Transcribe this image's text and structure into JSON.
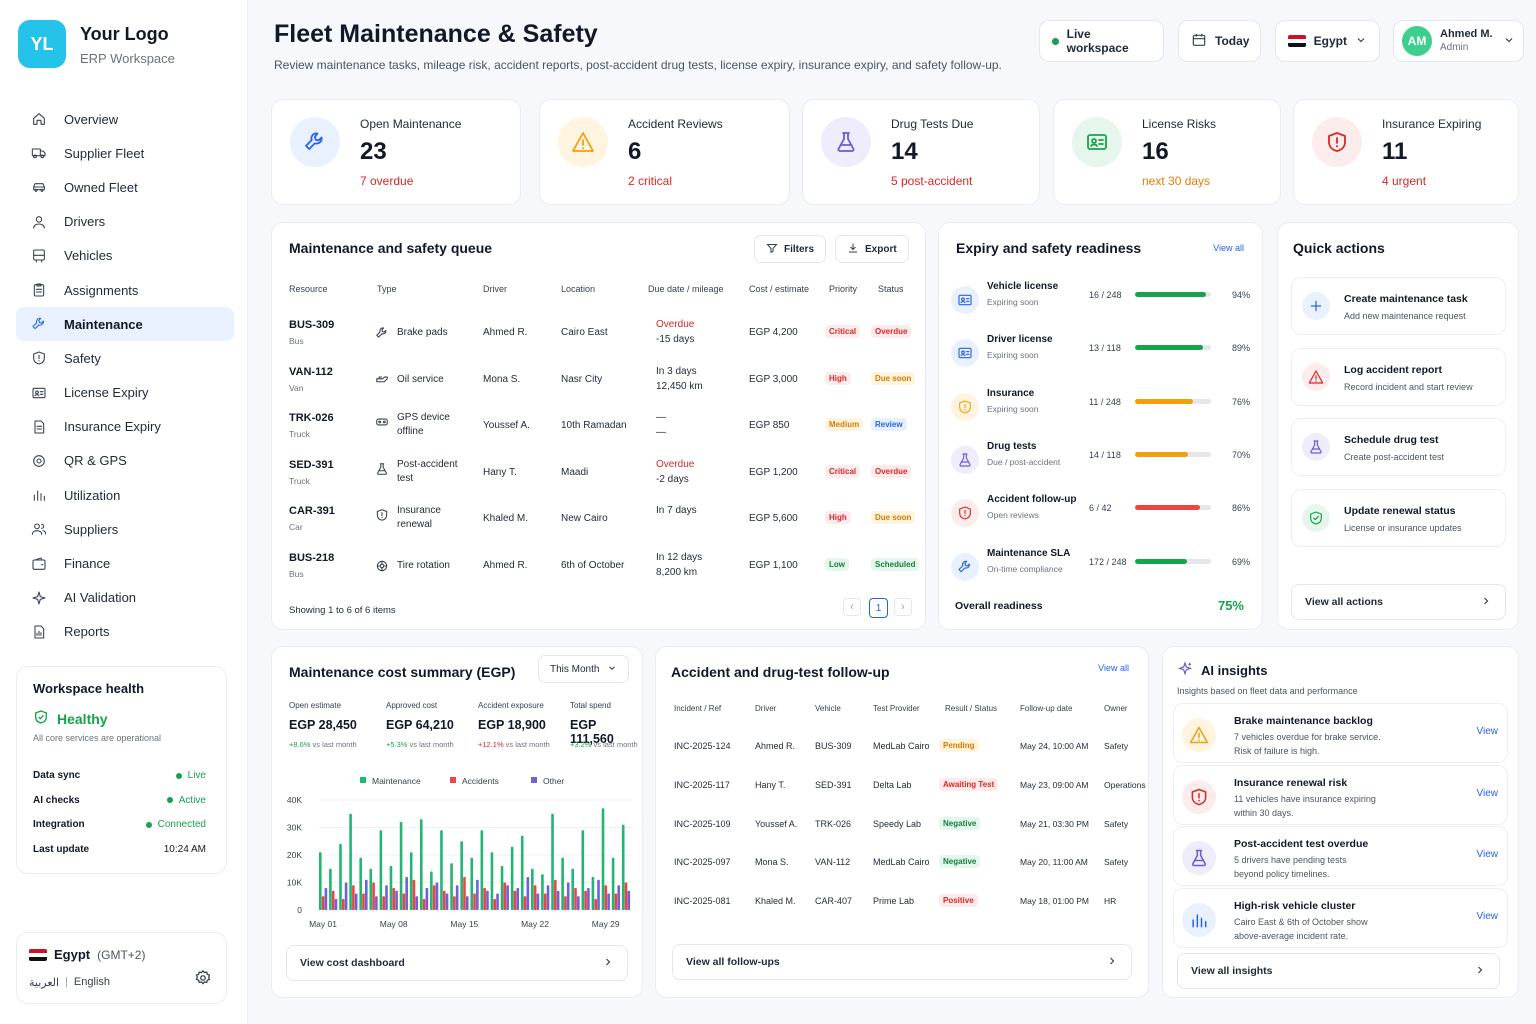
{
  "brand": {
    "logo_text": "YL",
    "title": "Your Logo",
    "subtitle": "ERP Workspace"
  },
  "nav": [
    {
      "label": "Overview",
      "icon": "home-icon",
      "active": false
    },
    {
      "label": "Supplier Fleet",
      "icon": "truck-icon",
      "active": false
    },
    {
      "label": "Owned Fleet",
      "icon": "car-icon",
      "active": false
    },
    {
      "label": "Drivers",
      "icon": "user-icon",
      "active": false
    },
    {
      "label": "Vehicles",
      "icon": "bus-icon",
      "active": false
    },
    {
      "label": "Assignments",
      "icon": "clipboard-icon",
      "active": false
    },
    {
      "label": "Maintenance",
      "icon": "wrench-icon",
      "active": true
    },
    {
      "label": "Safety",
      "icon": "shield-icon",
      "active": false
    },
    {
      "label": "License Expiry",
      "icon": "id-card-icon",
      "active": false
    },
    {
      "label": "Insurance Expiry",
      "icon": "document-icon",
      "active": false
    },
    {
      "label": "QR & GPS",
      "icon": "target-icon",
      "active": false
    },
    {
      "label": "Utilization",
      "icon": "bar-chart-icon",
      "active": false
    },
    {
      "label": "Suppliers",
      "icon": "users-icon",
      "active": false
    },
    {
      "label": "Finance",
      "icon": "wallet-icon",
      "active": false
    },
    {
      "label": "AI Validation",
      "icon": "sparkle-icon",
      "active": false
    },
    {
      "label": "Reports",
      "icon": "report-icon",
      "active": false
    }
  ],
  "health": {
    "title": "Workspace health",
    "status": "Healthy",
    "note": "All core services are operational",
    "rows": [
      {
        "label": "Data sync",
        "value": "Live",
        "dot": true
      },
      {
        "label": "AI checks",
        "value": "Active",
        "dot": true
      },
      {
        "label": "Integration",
        "value": "Connected",
        "dot": true
      },
      {
        "label": "Last update",
        "value": "10:24 AM",
        "dot": false
      }
    ]
  },
  "locale": {
    "country": "Egypt",
    "tz": "(GMT+2)",
    "lang_ar": "العربية",
    "sep": "|",
    "lang_en": "English"
  },
  "header": {
    "title": "Fleet Maintenance & Safety",
    "subtitle": "Review maintenance tasks, mileage risk, accident reports, post-accident drug tests, license expiry, insurance expiry, and safety follow-up.",
    "workspace": "Live workspace",
    "date": "Today",
    "country": "Egypt",
    "user_initials": "AM",
    "user_name": "Ahmed M.",
    "user_role": "Admin"
  },
  "kpis": [
    {
      "label": "Open Maintenance",
      "value": "23",
      "sub": "7 overdue",
      "icon": "wrench-icon",
      "color": "#2563eb",
      "bg": "#eaf1fe",
      "subcolor": "#dc2626"
    },
    {
      "label": "Accident Reviews",
      "value": "6",
      "sub": "2 critical",
      "icon": "warning-icon",
      "color": "#f59e0b",
      "bg": "#fff4e0",
      "subcolor": "#dc2626"
    },
    {
      "label": "Drug Tests Due",
      "value": "14",
      "sub": "5 post-accident",
      "icon": "flask-icon",
      "color": "#6d5bd0",
      "bg": "#efecfb",
      "subcolor": "#dc2626"
    },
    {
      "label": "License Risks",
      "value": "16",
      "sub": "next 30 days",
      "icon": "id-card-icon",
      "color": "#16a34a",
      "bg": "#e6f6ec",
      "subcolor": "#ea7b06"
    },
    {
      "label": "Insurance Expiring",
      "value": "11",
      "sub": "4 urgent",
      "icon": "shield-icon",
      "color": "#dc2626",
      "bg": "#fdecec",
      "subcolor": "#dc2626"
    }
  ],
  "queue": {
    "title": "Maintenance and safety queue",
    "filters": "Filters",
    "export": "Export",
    "columns": [
      "Resource",
      "Type",
      "Driver",
      "Location",
      "Due date / mileage",
      "Cost / estimate",
      "Priority",
      "Status"
    ],
    "rows": [
      {
        "resource": "BUS-309",
        "rtype": "Bus",
        "type1": "Brake pads",
        "type2": "",
        "icon": "wrench-icon",
        "driver": "Ahmed R.",
        "location": "Cairo East",
        "due1": "Overdue",
        "due2": "-15 days",
        "due_red": true,
        "cost": "EGP 4,200",
        "priority": "Critical",
        "pclass": "red",
        "status": "Overdue",
        "sclass": "pink"
      },
      {
        "resource": "VAN-112",
        "rtype": "Van",
        "type1": "Oil service",
        "type2": "",
        "icon": "oil-icon",
        "driver": "Mona S.",
        "location": "Nasr City",
        "due1": "In 3 days",
        "due2": "12,450 km",
        "due_red": false,
        "cost": "EGP 3,000",
        "priority": "High",
        "pclass": "red",
        "status": "Due soon",
        "sclass": "yellow"
      },
      {
        "resource": "TRK-026",
        "rtype": "Truck",
        "type1": "GPS device",
        "type2": "offline",
        "icon": "gps-icon",
        "driver": "Youssef A.",
        "location": "10th Ramadan",
        "due1": "—",
        "due2": "—",
        "due_red": false,
        "cost": "EGP 850",
        "priority": "Medium",
        "pclass": "yellow",
        "status": "Review",
        "sclass": "blue"
      },
      {
        "resource": "SED-391",
        "rtype": "Truck",
        "type1": "Post-accident",
        "type2": "test",
        "icon": "flask-icon",
        "driver": "Hany T.",
        "location": "Maadi",
        "due1": "Overdue",
        "due2": "-2 days",
        "due_red": true,
        "cost": "EGP 1,200",
        "priority": "Critical",
        "pclass": "red",
        "status": "Overdue",
        "sclass": "pink"
      },
      {
        "resource": "CAR-391",
        "rtype": "Car",
        "type1": "Insurance",
        "type2": "renewal",
        "icon": "shield-icon",
        "driver": "Khaled M.",
        "location": "New Cairo",
        "due1": "In 7 days",
        "due2": "",
        "due_red": false,
        "cost": "EGP 5,600",
        "priority": "High",
        "pclass": "red",
        "status": "Due soon",
        "sclass": "yellow"
      },
      {
        "resource": "BUS-218",
        "rtype": "Bus",
        "type1": "Tire rotation",
        "type2": "",
        "icon": "tire-icon",
        "driver": "Ahmed R.",
        "location": "6th of October",
        "due1": "In 12 days",
        "due2": "8,200 km",
        "due_red": false,
        "cost": "EGP 1,100",
        "priority": "Low",
        "pclass": "green",
        "status": "Scheduled",
        "sclass": "green"
      }
    ],
    "showing": "Showing 1 to 6 of 6 items",
    "page": "1",
    "prev": "‹",
    "next": "›"
  },
  "readiness": {
    "title": "Expiry and safety readiness",
    "view_all": "View all",
    "rows": [
      {
        "name": "Vehicle license",
        "sub": "Expiring soon",
        "count": "16 / 248",
        "pct": 94,
        "pct_label": "94%",
        "color": "#16a34a",
        "icon": "id-card-icon",
        "ic_color": "#2563eb",
        "ic_bg": "#eaf1fe"
      },
      {
        "name": "Driver license",
        "sub": "Expiring soon",
        "count": "13 / 118",
        "pct": 89,
        "pct_label": "89%",
        "color": "#16a34a",
        "icon": "id-card-icon",
        "ic_color": "#2563eb",
        "ic_bg": "#eaf1fe"
      },
      {
        "name": "Insurance",
        "sub": "Expiring soon",
        "count": "11 / 248",
        "pct": 76,
        "pct_label": "76%",
        "color": "#f59e0b",
        "icon": "shield-icon",
        "ic_color": "#f59e0b",
        "ic_bg": "#fff4e0"
      },
      {
        "name": "Drug tests",
        "sub": "Due / post-accident",
        "count": "14 / 118",
        "pct": 70,
        "pct_label": "70%",
        "color": "#f59e0b",
        "icon": "flask-icon",
        "ic_color": "#6d5bd0",
        "ic_bg": "#efecfb"
      },
      {
        "name": "Accident follow-up",
        "sub": "Open reviews",
        "count": "6 / 42",
        "pct": 86,
        "pct_label": "86%",
        "color": "#ef4444",
        "icon": "shield-icon",
        "ic_color": "#dc2626",
        "ic_bg": "#fdecec"
      },
      {
        "name": "Maintenance SLA",
        "sub": "On-time compliance",
        "count": "172 / 248",
        "pct": 69,
        "pct_label": "69%",
        "color": "#16a34a",
        "icon": "wrench-icon",
        "ic_color": "#2563eb",
        "ic_bg": "#eaf1fe"
      }
    ],
    "overall_label": "Overall readiness",
    "overall": "75%"
  },
  "quick": {
    "title": "Quick actions",
    "items": [
      {
        "title": "Create maintenance task",
        "sub": "Add new maintenance request",
        "icon": "plus-icon",
        "color": "#2563eb",
        "bg": "#eaf1fe"
      },
      {
        "title": "Log accident report",
        "sub": "Record incident and start review",
        "icon": "warning-icon",
        "color": "#dc2626",
        "bg": "#fdecec"
      },
      {
        "title": "Schedule drug test",
        "sub": "Create post-accident test",
        "icon": "flask-icon",
        "color": "#6d5bd0",
        "bg": "#efecfb"
      },
      {
        "title": "Update renewal status",
        "sub": "License or insurance updates",
        "icon": "shield-check-icon",
        "color": "#16a34a",
        "bg": "#e6f6ec"
      }
    ],
    "view_all": "View all actions"
  },
  "cost": {
    "title": "Maintenance cost summary (EGP)",
    "period": "This Month",
    "stats": [
      {
        "label": "Open estimate",
        "value": "EGP 28,450",
        "delta": "+8.6%",
        "delta_text": "vs last month"
      },
      {
        "label": "Approved cost",
        "value": "EGP 64,210",
        "delta": "+5.3%",
        "delta_text": "vs last month"
      },
      {
        "label": "Accident exposure",
        "value": "EGP 18,900",
        "delta": "+12.1%",
        "delta_text": "vs last month"
      },
      {
        "label": "Total spend",
        "value": "EGP 111,560",
        "delta": "+3.2%",
        "delta_text": "vs last month"
      }
    ],
    "button": "View cost dashboard"
  },
  "chart_data": {
    "type": "bar",
    "ylim": [
      0,
      40000
    ],
    "yticks": [
      {
        "v": 40000,
        "label": "40K"
      },
      {
        "v": 30000,
        "label": "30K"
      },
      {
        "v": 20000,
        "label": "20K"
      },
      {
        "v": 10000,
        "label": "10K"
      },
      {
        "v": 0,
        "label": "0"
      }
    ],
    "xticks": [
      {
        "i": 0,
        "label": "May 01"
      },
      {
        "i": 7,
        "label": "May 08"
      },
      {
        "i": 14,
        "label": "May 15"
      },
      {
        "i": 21,
        "label": "May 22"
      },
      {
        "i": 28,
        "label": "May 29"
      }
    ],
    "legend_position": "top",
    "series": [
      {
        "name": "Maintenance",
        "color": "#22b573",
        "values": [
          21000,
          15000,
          24000,
          35000,
          19000,
          15000,
          29000,
          16000,
          32000,
          21000,
          33000,
          14000,
          29000,
          17000,
          25000,
          19000,
          29000,
          21000,
          16000,
          23000,
          27000,
          15000,
          13000,
          35000,
          19000,
          15000,
          29000,
          12000,
          37000,
          19000,
          31000
        ]
      },
      {
        "name": "Accidents",
        "color": "#ef4444",
        "values": [
          5000,
          7000,
          4000,
          9000,
          6000,
          10000,
          5000,
          8000,
          6000,
          11000,
          4000,
          9000,
          7000,
          5000,
          12000,
          6000,
          8000,
          4000,
          10000,
          7000,
          5000,
          9000,
          6000,
          11000,
          5000,
          8000,
          7000,
          4000,
          9000,
          6000,
          10000
        ]
      },
      {
        "name": "Other",
        "color": "#6b63d8",
        "values": [
          8000,
          4000,
          10000,
          6000,
          11000,
          5000,
          9000,
          7000,
          12000,
          5000,
          8000,
          10000,
          6000,
          9000,
          5000,
          11000,
          7000,
          6000,
          9000,
          8000,
          12000,
          6000,
          9000,
          7000,
          10000,
          5000,
          8000,
          11000,
          6000,
          9000,
          7000
        ]
      }
    ]
  },
  "followup": {
    "title": "Accident and drug-test follow-up",
    "view_all": "View all",
    "columns": [
      "Incident / Ref",
      "Driver",
      "Vehicle",
      "Test Provider",
      "Result / Status",
      "Follow-up date",
      "Owner"
    ],
    "rows": [
      {
        "ref": "INC-2025-124",
        "driver": "Ahmed R.",
        "vehicle": "BUS-309",
        "provider": "MedLab Cairo",
        "status": "Pending",
        "sclass": "yellow",
        "date": "May 24, 10:00 AM",
        "owner": "Safety"
      },
      {
        "ref": "INC-2025-117",
        "driver": "Hany T.",
        "vehicle": "SED-391",
        "provider": "Delta Lab",
        "status": "Awaiting Test",
        "sclass": "pink",
        "date": "May 23, 09:00 AM",
        "owner": "Operations"
      },
      {
        "ref": "INC-2025-109",
        "driver": "Youssef A.",
        "vehicle": "TRK-026",
        "provider": "Speedy Lab",
        "status": "Negative",
        "sclass": "green",
        "date": "May 21, 03:30 PM",
        "owner": "Safety"
      },
      {
        "ref": "INC-2025-097",
        "driver": "Mona S.",
        "vehicle": "VAN-112",
        "provider": "MedLab Cairo",
        "status": "Negative",
        "sclass": "green",
        "date": "May 20, 11:00 AM",
        "owner": "Safety"
      },
      {
        "ref": "INC-2025-081",
        "driver": "Khaled M.",
        "vehicle": "CAR-407",
        "provider": "Prime Lab",
        "status": "Positive",
        "sclass": "pink",
        "date": "May 18, 01:00 PM",
        "owner": "HR"
      }
    ],
    "button": "View all follow-ups"
  },
  "ai": {
    "title": "AI insights",
    "subtitle": "Insights based on fleet data and performance",
    "items": [
      {
        "title": "Brake maintenance backlog",
        "d1": "7 vehicles overdue for brake service.",
        "d2": "Risk of failure is high.",
        "view": "View",
        "icon": "warning-icon",
        "color": "#f59e0b",
        "bg": "#fff4e0"
      },
      {
        "title": "Insurance renewal risk",
        "d1": "11 vehicles have insurance expiring",
        "d2": "within 30 days.",
        "view": "View",
        "icon": "shield-icon",
        "color": "#dc2626",
        "bg": "#fdecec"
      },
      {
        "title": "Post-accident test overdue",
        "d1": "5 drivers have pending tests",
        "d2": "beyond policy timelines.",
        "view": "View",
        "icon": "flask-icon",
        "color": "#6d5bd0",
        "bg": "#efecfb"
      },
      {
        "title": "High-risk vehicle cluster",
        "d1": "Cairo East & 6th of October show",
        "d2": "above-average incident rate.",
        "view": "View",
        "icon": "bar-chart-icon",
        "color": "#2563eb",
        "bg": "#eaf1fe"
      }
    ],
    "button": "View all insights"
  }
}
